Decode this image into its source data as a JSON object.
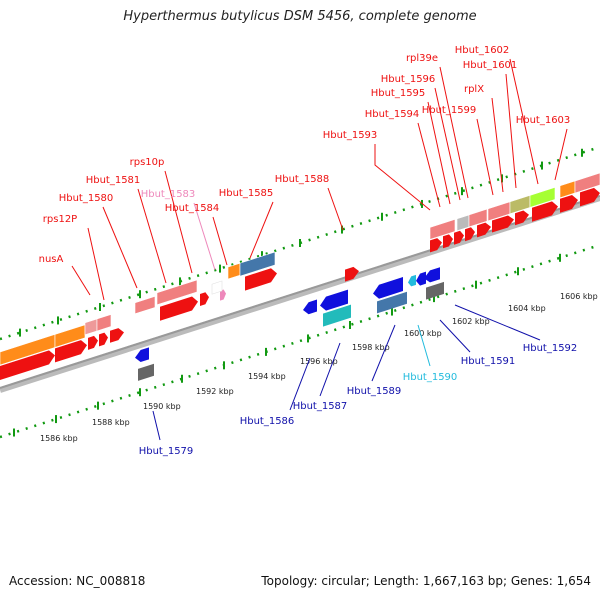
{
  "title": "Hyperthermus butylicus DSM 5456, complete genome",
  "footer": {
    "accession": "Accession: NC_008818",
    "summary": "Topology: circular; Length: 1,667,163 bp; Genes: 1,654"
  },
  "colors": {
    "forward_gene": "#ee1111",
    "reverse_gene": "#1010dd",
    "rna_gene": "#f07f7f",
    "pseudo_label": "#ee88bb",
    "highlight_label": "#22bbdd",
    "backbone": "#999999",
    "orange": "#ff8c1a",
    "grey_block": "#666666",
    "teal_block": "#22bbbb",
    "steel_block": "#4477aa",
    "green_block": "#a6ff33",
    "olive_block": "#bbbb66",
    "tick": "#119911"
  },
  "scale": {
    "upper_ticks": [
      {
        "label": "1602 kbp"
      },
      {
        "label": "1604 kbp"
      },
      {
        "label": "1606 kbp"
      }
    ],
    "lower_ticks": [
      {
        "label": "1586 kbp"
      },
      {
        "label": "1588 kbp"
      },
      {
        "label": "1590 kbp"
      },
      {
        "label": "1592 kbp"
      },
      {
        "label": "1594 kbp"
      },
      {
        "label": "1596 kbp"
      },
      {
        "label": "1598 kbp"
      },
      {
        "label": "1600 kbp"
      }
    ]
  },
  "forward_labels": [
    {
      "name": "nusA",
      "color": "#ee1111"
    },
    {
      "name": "rps12P",
      "color": "#ee1111"
    },
    {
      "name": "Hbut_1580",
      "color": "#ee1111"
    },
    {
      "name": "Hbut_1581",
      "color": "#ee1111"
    },
    {
      "name": "rps10p",
      "color": "#ee1111"
    },
    {
      "name": "Hbut_1583",
      "color": "#ee88bb"
    },
    {
      "name": "Hbut_1584",
      "color": "#ee1111"
    },
    {
      "name": "Hbut_1585",
      "color": "#ee1111"
    },
    {
      "name": "Hbut_1588",
      "color": "#ee1111"
    },
    {
      "name": "Hbut_1593",
      "color": "#ee1111"
    },
    {
      "name": "Hbut_1594",
      "color": "#ee1111"
    },
    {
      "name": "Hbut_1595",
      "color": "#ee1111"
    },
    {
      "name": "Hbut_1596",
      "color": "#ee1111"
    },
    {
      "name": "rpl39e",
      "color": "#ee1111"
    },
    {
      "name": "Hbut_1599",
      "color": "#ee1111"
    },
    {
      "name": "rplX",
      "color": "#ee1111"
    },
    {
      "name": "Hbut_1601",
      "color": "#ee1111"
    },
    {
      "name": "Hbut_1602",
      "color": "#ee1111"
    },
    {
      "name": "Hbut_1603",
      "color": "#ee1111"
    }
  ],
  "reverse_labels": [
    {
      "name": "Hbut_1579",
      "color": "#1010aa"
    },
    {
      "name": "Hbut_1586",
      "color": "#1010aa"
    },
    {
      "name": "Hbut_1587",
      "color": "#1010aa"
    },
    {
      "name": "Hbut_1589",
      "color": "#1010aa"
    },
    {
      "name": "Hbut_1590",
      "color": "#22bbdd"
    },
    {
      "name": "Hbut_1591",
      "color": "#1010aa"
    },
    {
      "name": "Hbut_1592",
      "color": "#1010aa"
    }
  ]
}
